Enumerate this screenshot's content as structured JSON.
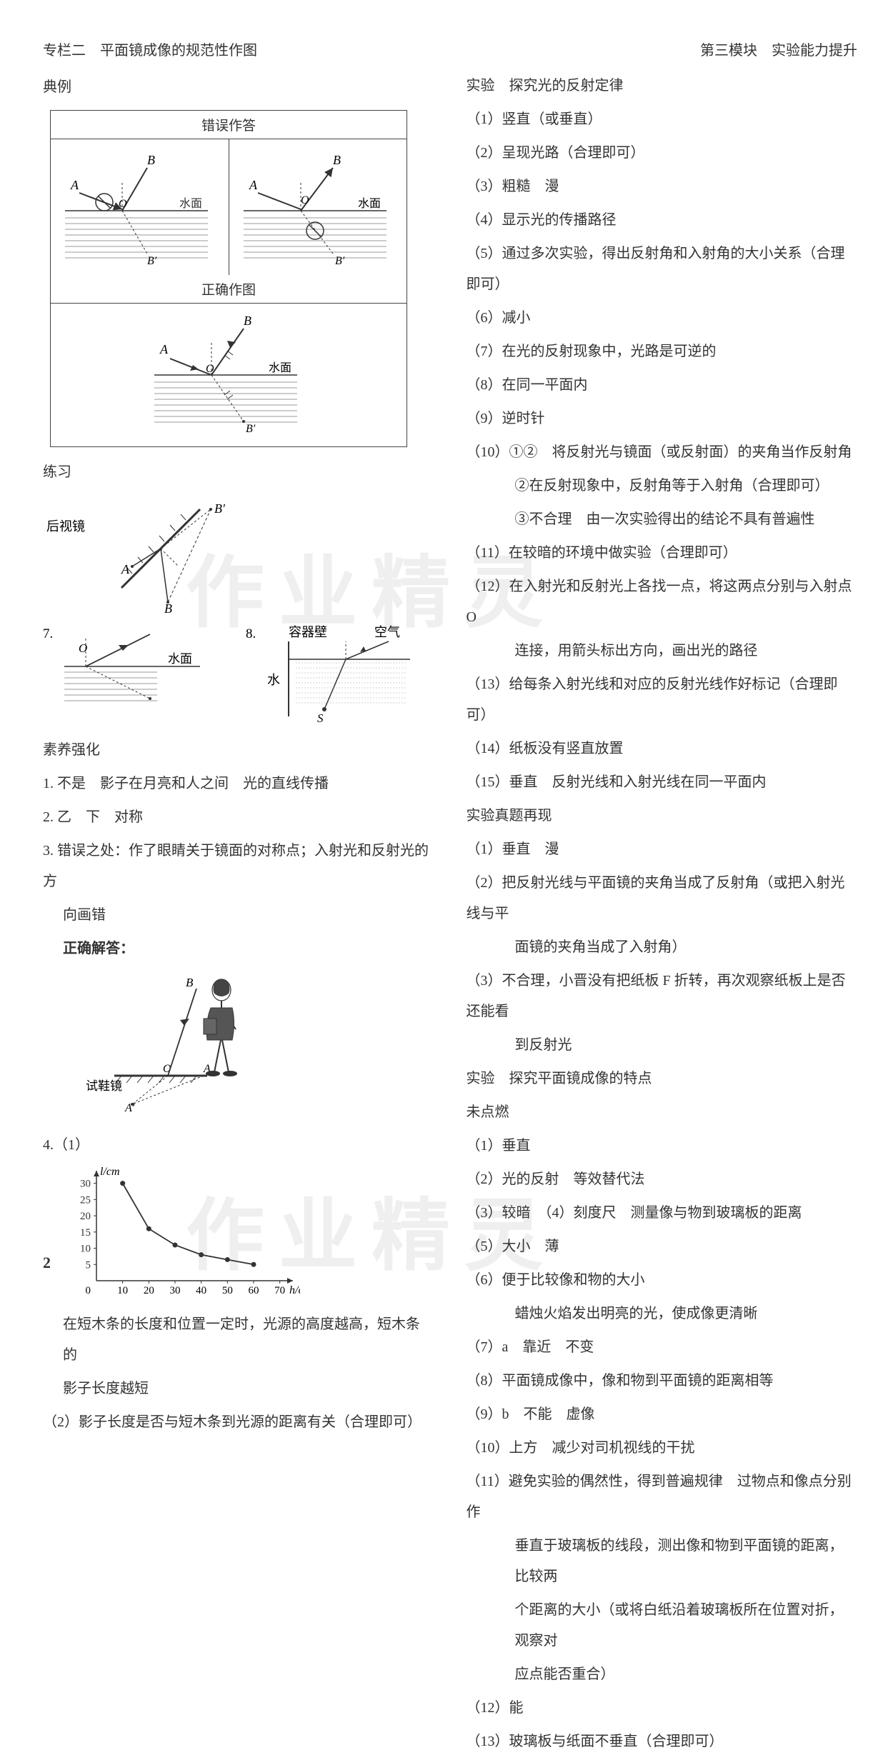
{
  "left": {
    "title_line": "专栏二　平面镜成像的规范性作图",
    "example_label": "典例",
    "box1_header": "错误作答",
    "box2_header": "正确作图",
    "diagram_labels": {
      "A": "A",
      "B": "B",
      "O": "O",
      "Bprime": "B′",
      "water": "水面"
    },
    "practice_label": "练习",
    "practice_rearview": "后视镜",
    "item7_num": "7.",
    "item7_water": "水面",
    "item8_num": "8.",
    "item8_wall": "容器壁",
    "item8_air": "空气",
    "item8_water": "水",
    "item8_S": "S",
    "suyang_title": "素养强化",
    "q1": "1. 不是　影子在月亮和人之间　光的直线传播",
    "q2": "2. 乙　下　对称",
    "q3_line1": "3. 错误之处：作了眼睛关于镜面的对称点；入射光和反射光的方",
    "q3_line2": "向画错",
    "q3_answer_label": "正确解答：",
    "q3_mirror": "试鞋镜",
    "q4_prefix": "4.（1）",
    "chart": {
      "ylabel": "l/cm",
      "xlabel": "h/cm",
      "yticks": [
        0,
        5,
        10,
        15,
        20,
        25,
        30
      ],
      "xticks": [
        0,
        10,
        20,
        30,
        40,
        50,
        60,
        70
      ],
      "points_x": [
        10,
        20,
        30,
        40,
        50,
        60
      ],
      "points_y": [
        30,
        16,
        11,
        8,
        6.5,
        5
      ],
      "axis_color": "#333333",
      "point_color": "#333333",
      "line_color": "#333333",
      "yrange": [
        0,
        33
      ],
      "xrange": [
        0,
        75
      ]
    },
    "q4_text1": "在短木条的长度和位置一定时，光源的高度越高，短木条的",
    "q4_text2": "影子长度越短",
    "q4_part2": "（2）影子长度是否与短木条到光源的距离有关（合理即可）"
  },
  "right": {
    "module_title": "第三模块　实验能力提升",
    "exp1_title": "实验　探究光的反射定律",
    "exp1": [
      "（1）竖直（或垂直）",
      "（2）呈现光路（合理即可）",
      "（3）粗糙　漫",
      "（4）显示光的传播路径",
      "（5）通过多次实验，得出反射角和入射角的大小关系（合理即可）",
      "（6）减小",
      "（7）在光的反射现象中，光路是可逆的",
      "（8）在同一平面内",
      "（9）逆时针",
      "（10）①②　将反射光与镜面（或反射面）的夹角当作反射角",
      "②在反射现象中，反射角等于入射角（合理即可）",
      "③不合理　由一次实验得出的结论不具有普遍性",
      "（11）在较暗的环境中做实验（合理即可）",
      "（12）在入射光和反射光上各找一点，将这两点分别与入射点 O",
      "连接，用箭头标出方向，画出光的路径",
      "（13）给每条入射光线和对应的反射光线作好标记（合理即可）",
      "（14）纸板没有竖直放置",
      "（15）垂直　反射光线和入射光线在同一平面内"
    ],
    "exp1_indent": {
      "10_2": true,
      "10_3": true,
      "12_2": true
    },
    "replay_title": "实验真题再现",
    "replay": [
      "（1）垂直　漫",
      "（2）把反射光线与平面镜的夹角当成了反射角（或把入射光线与平",
      "面镜的夹角当成了入射角）",
      "（3）不合理，小晋没有把纸板 F 折转，再次观察纸板上是否还能看",
      "到反射光"
    ],
    "exp2_title": "实验　探究平面镜成像的特点",
    "exp2_pre": "未点燃",
    "exp2": [
      "（1）垂直",
      "（2）光的反射　等效替代法",
      "（3）较暗　（4）刻度尺　测量像与物到玻璃板的距离",
      "（5）大小　薄",
      "（6）便于比较像和物的大小",
      "蜡烛火焰发出明亮的光，使成像更清晰",
      "（7）a　靠近　不变",
      "（8）平面镜成像中，像和物到平面镜的距离相等",
      "（9）b　不能　虚像",
      "（10）上方　减少对司机视线的干扰",
      "（11）避免实验的偶然性，得到普遍规律　过物点和像点分别作",
      "垂直于玻璃板的线段，测出像和物到平面镜的距离，比较两",
      "个距离的大小（或将白纸沿着玻璃板所在位置对折，观察对",
      "应点能否重合）",
      "（12）能",
      "（13）玻璃板与纸面不垂直（合理即可）"
    ]
  },
  "page_number": "2",
  "watermark_text": "作业精灵"
}
